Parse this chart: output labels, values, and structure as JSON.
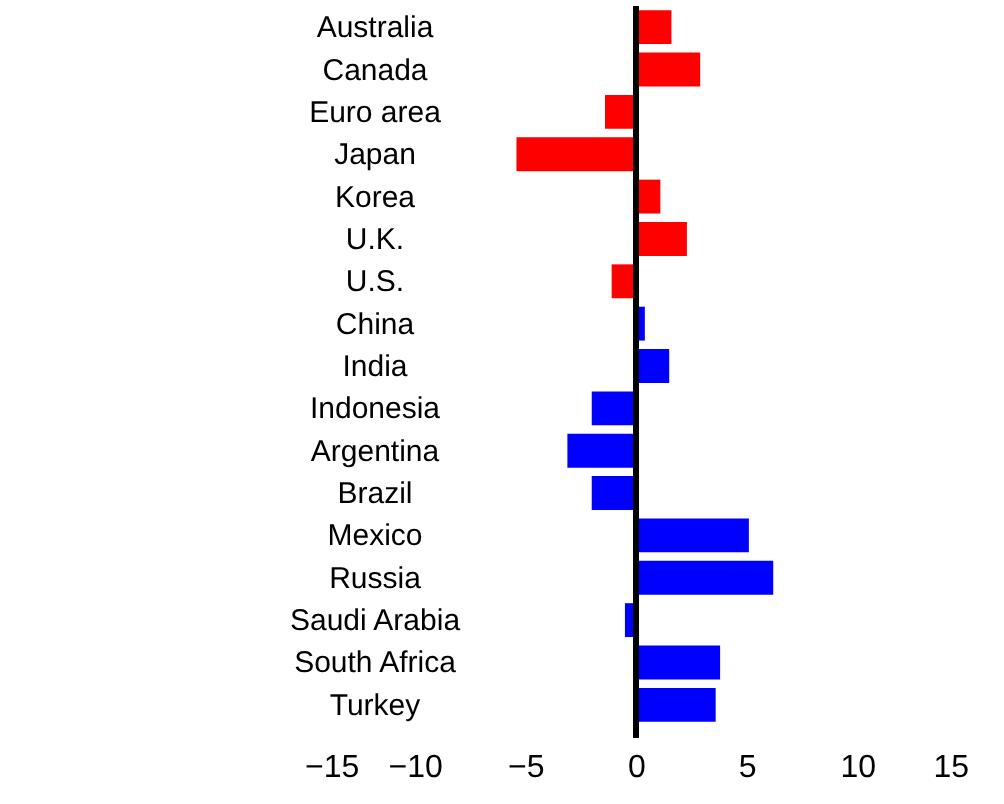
{
  "chart_data": {
    "type": "bar",
    "orientation": "horizontal",
    "categories": [
      "Australia",
      "Canada",
      "Euro area",
      "Japan",
      "Korea",
      "U.K.",
      "U.S.",
      "China",
      "India",
      "Indonesia",
      "Argentina",
      "Brazil",
      "Mexico",
      "Russia",
      "Saudi Arabia",
      "South Africa",
      "Turkey"
    ],
    "values": [
      1.6,
      2.9,
      -1.4,
      -5.4,
      1.1,
      2.3,
      -1.1,
      0.4,
      1.5,
      -2.0,
      -3.1,
      -2.0,
      5.1,
      6.2,
      -0.5,
      3.8,
      3.6
    ],
    "colors": [
      "#ff0000",
      "#ff0000",
      "#ff0000",
      "#ff0000",
      "#ff0000",
      "#ff0000",
      "#ff0000",
      "#0000ff",
      "#0000ff",
      "#0000ff",
      "#0000ff",
      "#0000ff",
      "#0000ff",
      "#0000ff",
      "#0000ff",
      "#0000ff",
      "#0000ff"
    ],
    "xlim": [
      -15,
      15
    ],
    "xticks": [
      -15,
      -10,
      -5,
      0,
      5,
      10,
      15
    ],
    "ref_lines": [
      {
        "axis": "x",
        "value": 0,
        "color": "#000000"
      }
    ],
    "grid": false
  }
}
